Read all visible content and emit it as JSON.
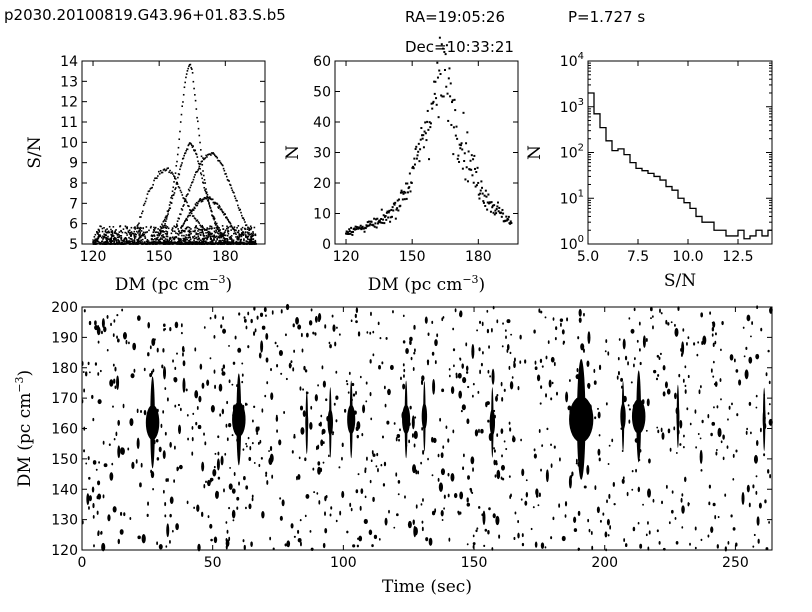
{
  "header": {
    "source": "p2030.20100819.G43.96+01.83.S.b5",
    "ra": "RA=19:05:26",
    "dec": "Dec=10:33:21",
    "period": "P=1.727 s"
  },
  "chart_data": [
    {
      "type": "scatter",
      "panel": "snr-vs-dm",
      "xlabel": "DM  (pc  cm",
      "xlabel_sup": "−3",
      "xlabel_close": ")",
      "ylabel": "S/N",
      "xlim": [
        115,
        198
      ],
      "ylim": [
        5,
        14
      ],
      "xticks": [
        120,
        150,
        180
      ],
      "yticks": [
        5,
        6,
        7,
        8,
        9,
        10,
        11,
        12,
        13,
        14
      ],
      "series": [
        {
          "x": [
            150,
            152,
            154,
            156,
            158,
            159,
            160,
            161,
            162,
            163,
            164,
            165,
            166,
            168,
            170,
            173,
            176,
            180
          ],
          "y": [
            5.4,
            5.8,
            6.5,
            7.5,
            9.0,
            10.0,
            11.2,
            12.3,
            13.1,
            13.6,
            13.9,
            13.6,
            12.5,
            10.5,
            8.5,
            6.8,
            5.8,
            5.3
          ]
        },
        {
          "x": [
            140,
            145,
            150,
            154,
            157,
            160,
            163,
            166,
            169,
            172,
            175,
            178
          ],
          "y": [
            5.8,
            7.5,
            8.5,
            8.7,
            8.3,
            7.5,
            6.9,
            6.3,
            5.9,
            5.6,
            5.4,
            5.2
          ]
        },
        {
          "x": [
            150,
            155,
            158,
            161,
            164,
            167,
            170,
            174,
            178
          ],
          "y": [
            5.6,
            6.8,
            8.0,
            9.3,
            10.0,
            9.4,
            8.0,
            6.5,
            5.5
          ]
        },
        {
          "x": [
            158,
            162,
            166,
            170,
            174,
            178,
            182,
            186,
            190
          ],
          "y": [
            6.0,
            7.2,
            8.3,
            9.2,
            9.5,
            9.0,
            8.0,
            6.8,
            5.8
          ]
        },
        {
          "x": [
            160,
            164,
            168,
            172,
            176,
            180,
            184
          ],
          "y": [
            5.8,
            6.5,
            7.1,
            7.3,
            7.0,
            6.4,
            5.7
          ]
        }
      ]
    },
    {
      "type": "scatter",
      "panel": "count-vs-dm",
      "xlabel": "DM  (pc  cm",
      "xlabel_sup": "−3",
      "xlabel_close": ")",
      "ylabel": "N",
      "xlim": [
        115,
        198
      ],
      "ylim": [
        0,
        60
      ],
      "xticks": [
        120,
        150,
        180
      ],
      "yticks": [
        0,
        10,
        20,
        30,
        40,
        50,
        60
      ],
      "series": [
        {
          "x": [
            120,
            125,
            130,
            135,
            140,
            145,
            150,
            153,
            156,
            159,
            162,
            164,
            166,
            168,
            170,
            173,
            176,
            180,
            185,
            190,
            195
          ],
          "y": [
            4,
            5,
            6,
            7,
            10,
            15,
            22,
            30,
            38,
            45,
            52,
            56,
            54,
            46,
            40,
            33,
            27,
            20,
            14,
            10,
            7
          ]
        }
      ]
    },
    {
      "type": "line",
      "panel": "snr-histogram",
      "xlabel": "S/N",
      "ylabel": "N",
      "yscale": "log",
      "xlim": [
        5.0,
        14.2
      ],
      "ylim": [
        1,
        10000
      ],
      "xticks": [
        5.0,
        7.5,
        10.0,
        12.5
      ],
      "xtick_labels": [
        "5.0",
        "7.5",
        "10.0",
        "12.5"
      ],
      "yticks": [
        1,
        10,
        100,
        1000,
        10000
      ],
      "ytick_bases": [
        "10",
        "10",
        "10",
        "10",
        "10"
      ],
      "ytick_exps": [
        "0",
        "1",
        "2",
        "3",
        "4"
      ],
      "x": [
        5.0,
        5.3,
        5.6,
        5.9,
        6.2,
        6.5,
        6.8,
        7.1,
        7.4,
        7.7,
        8.0,
        8.3,
        8.6,
        8.9,
        9.2,
        9.5,
        9.8,
        10.1,
        10.4,
        10.7,
        11.0,
        11.3,
        11.6,
        11.9,
        12.2,
        12.5,
        12.8,
        13.1,
        13.4,
        13.7,
        14.0
      ],
      "y": [
        2000,
        700,
        350,
        180,
        110,
        120,
        90,
        60,
        45,
        40,
        35,
        30,
        25,
        18,
        15,
        10,
        8,
        6,
        4,
        3,
        3,
        2,
        2,
        1.5,
        1.5,
        2,
        1.3,
        1.5,
        2,
        1.5,
        2
      ]
    },
    {
      "type": "scatter",
      "panel": "dm-vs-time",
      "xlabel": "Time  (sec)",
      "ylabel": "DM  (pc  cm",
      "ylabel_sup": "−3",
      "ylabel_close": ")",
      "xlim": [
        0,
        264
      ],
      "ylim": [
        120,
        200
      ],
      "xticks": [
        0,
        50,
        100,
        150,
        200,
        250
      ],
      "yticks": [
        120,
        130,
        140,
        150,
        160,
        170,
        180,
        190,
        200
      ],
      "pulses": [
        {
          "t": 27,
          "dm": 162,
          "snr": 10
        },
        {
          "t": 60,
          "dm": 163,
          "snr": 10
        },
        {
          "t": 86,
          "dm": 162,
          "snr": 6
        },
        {
          "t": 95,
          "dm": 162,
          "snr": 7
        },
        {
          "t": 103,
          "dm": 163,
          "snr": 8
        },
        {
          "t": 124,
          "dm": 163,
          "snr": 8
        },
        {
          "t": 131,
          "dm": 164,
          "snr": 7
        },
        {
          "t": 157,
          "dm": 162,
          "snr": 7
        },
        {
          "t": 191,
          "dm": 163,
          "snr": 14
        },
        {
          "t": 207,
          "dm": 164,
          "snr": 7
        },
        {
          "t": 213,
          "dm": 164,
          "snr": 10
        },
        {
          "t": 228,
          "dm": 164,
          "snr": 6
        },
        {
          "t": 261,
          "dm": 163,
          "snr": 6
        }
      ]
    }
  ]
}
